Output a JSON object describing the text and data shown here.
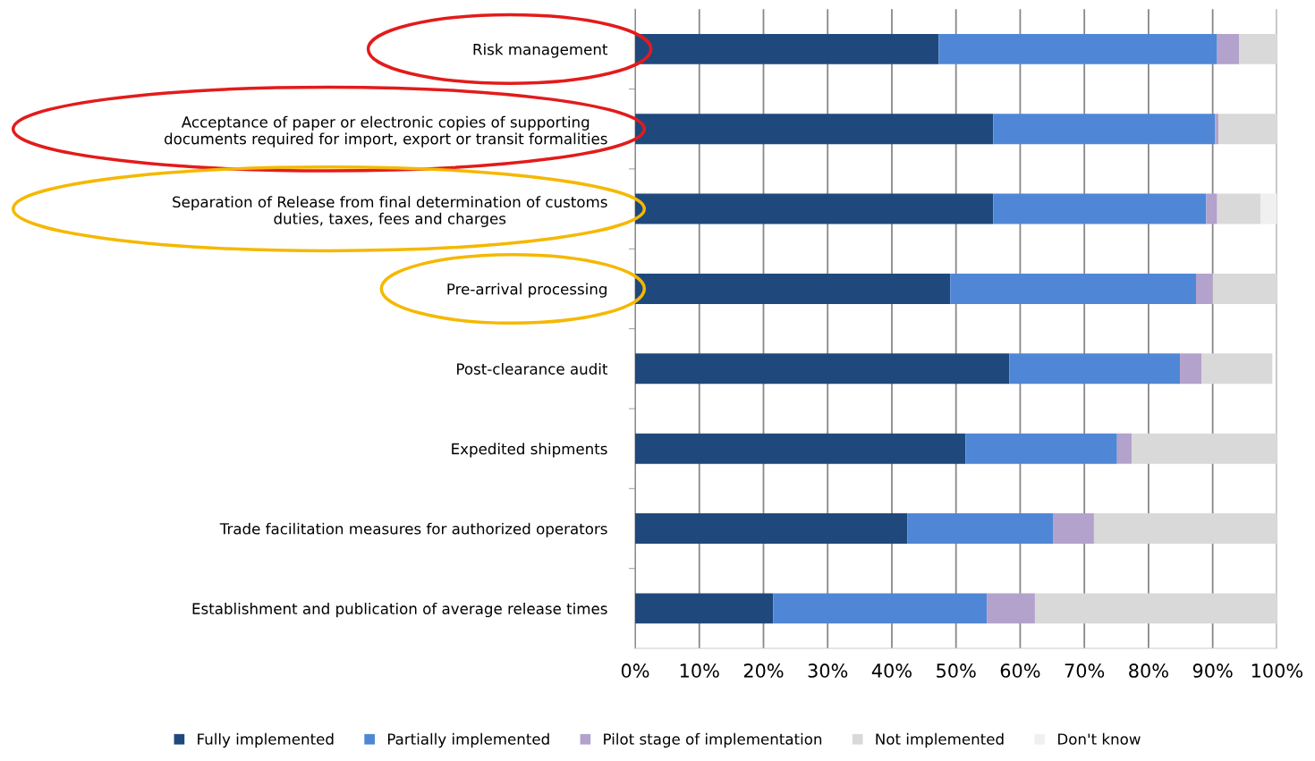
{
  "chart_data": {
    "type": "bar",
    "orientation": "horizontal",
    "stacked": true,
    "categories": [
      "Risk management",
      "Acceptance of paper or electronic copies of supporting\ndocuments required for import, export or transit formalities",
      "Separation of Release from final determination of customs\nduties, taxes, fees and charges",
      "Pre-arrival processing",
      "Post-clearance audit",
      "Expedited shipments",
      "Trade facilitation measures for authorized operators",
      "Establishment and publication of average release times"
    ],
    "series": [
      {
        "name": "Fully implemented",
        "color": "#1f497d",
        "values": [
          47.3,
          55.8,
          55.8,
          49.1,
          58.3,
          51.5,
          42.4,
          21.5
        ]
      },
      {
        "name": "Partially implemented",
        "color": "#4f87d6",
        "values": [
          43.4,
          34.6,
          33.2,
          38.3,
          26.6,
          23.6,
          22.7,
          33.3
        ]
      },
      {
        "name": "Pilot stage of implementation",
        "color": "#b3a2cc",
        "values": [
          3.4,
          0.5,
          1.7,
          2.6,
          3.4,
          2.3,
          6.4,
          7.5
        ]
      },
      {
        "name": "Not implemented",
        "color": "#d9d9d9",
        "values": [
          5.9,
          9.1,
          6.8,
          10.0,
          11.0,
          22.6,
          28.5,
          37.7
        ]
      },
      {
        "name": "Don't know",
        "color": "#f0f0f0",
        "values": [
          0,
          0,
          2.5,
          0,
          0,
          0,
          0,
          0
        ]
      }
    ],
    "xlim": [
      0,
      100
    ],
    "xticks": [
      {
        "value": 0,
        "label": "0%"
      },
      {
        "value": 10,
        "label": "10%"
      },
      {
        "value": 20,
        "label": "20%"
      },
      {
        "value": 30,
        "label": "30%"
      },
      {
        "value": 40,
        "label": "40%"
      },
      {
        "value": 50,
        "label": "50%"
      },
      {
        "value": 60,
        "label": "60%"
      },
      {
        "value": 70,
        "label": "70%"
      },
      {
        "value": 80,
        "label": "80%"
      },
      {
        "value": 90,
        "label": "90%"
      },
      {
        "value": 100,
        "label": "100%"
      }
    ],
    "grid": "x",
    "legend": "bottom"
  }
}
